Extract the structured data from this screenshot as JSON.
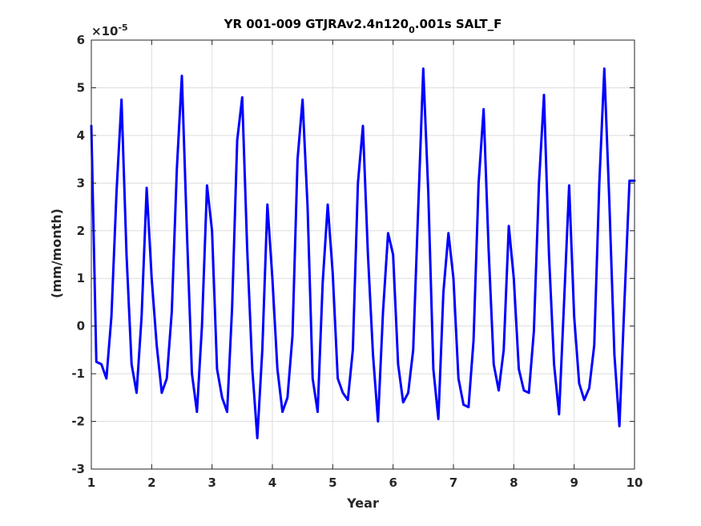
{
  "chart_data": {
    "type": "line",
    "title_main": "YR 001-009 GTJRAv2.4n120",
    "title_sub": "0",
    "title_tail": ".001s SALT_F",
    "xlabel": "Year",
    "ylabel": "(mm/month)",
    "multiplier_base": "×10",
    "multiplier_exp": "-5",
    "xlim": [
      1,
      10
    ],
    "ylim": [
      -3,
      6
    ],
    "xticks": [
      "1",
      "2",
      "3",
      "4",
      "5",
      "6",
      "7",
      "8",
      "9",
      "10"
    ],
    "yticks": [
      "-3",
      "-2",
      "-1",
      "0",
      "1",
      "2",
      "3",
      "4",
      "5",
      "6"
    ],
    "grid": true,
    "line_color": "#0000ff",
    "series": [
      {
        "x": [
          1.0,
          1.083,
          1.167,
          1.25,
          1.333,
          1.417,
          1.5,
          1.583,
          1.667,
          1.75,
          1.833,
          1.917,
          2.0,
          2.083,
          2.167,
          2.25,
          2.333,
          2.417,
          2.5,
          2.583,
          2.667,
          2.75,
          2.833,
          2.917,
          3.0,
          3.083,
          3.167,
          3.25,
          3.333,
          3.417,
          3.5,
          3.583,
          3.667,
          3.75,
          3.833,
          3.917,
          4.0,
          4.083,
          4.167,
          4.25,
          4.333,
          4.417,
          4.5,
          4.583,
          4.667,
          4.75,
          4.833,
          4.917,
          5.0,
          5.083,
          5.167,
          5.25,
          5.333,
          5.417,
          5.5,
          5.583,
          5.667,
          5.75,
          5.833,
          5.917,
          6.0,
          6.083,
          6.167,
          6.25,
          6.333,
          6.417,
          6.5,
          6.583,
          6.667,
          6.75,
          6.833,
          6.917,
          7.0,
          7.083,
          7.167,
          7.25,
          7.333,
          7.417,
          7.5,
          7.583,
          7.667,
          7.75,
          7.833,
          7.917,
          8.0,
          8.083,
          8.167,
          8.25,
          8.333,
          8.417,
          8.5,
          8.583,
          8.667,
          8.75,
          8.833,
          8.917,
          9.0,
          9.083,
          9.167,
          9.25,
          9.333,
          9.417,
          9.5,
          9.583,
          9.667,
          9.75,
          9.833,
          9.917,
          10.0
        ],
        "y": [
          4.2,
          -0.75,
          -0.8,
          -1.1,
          0.2,
          2.8,
          4.75,
          1.5,
          -0.8,
          -1.4,
          0.2,
          2.9,
          1.0,
          -0.4,
          -1.4,
          -1.1,
          0.3,
          3.3,
          5.25,
          2.0,
          -1.0,
          -1.8,
          0.0,
          2.95,
          2.0,
          -0.9,
          -1.5,
          -1.8,
          0.4,
          3.9,
          4.8,
          1.6,
          -0.9,
          -2.35,
          -0.5,
          2.55,
          1.0,
          -0.9,
          -1.8,
          -1.5,
          -0.2,
          3.5,
          4.75,
          2.5,
          -1.1,
          -1.8,
          0.9,
          2.55,
          1.1,
          -1.1,
          -1.4,
          -1.55,
          -0.5,
          3.0,
          4.2,
          1.5,
          -0.6,
          -2.0,
          0.3,
          1.95,
          1.5,
          -0.8,
          -1.6,
          -1.4,
          -0.5,
          2.5,
          5.4,
          2.8,
          -0.9,
          -1.95,
          0.7,
          1.95,
          1.0,
          -1.1,
          -1.65,
          -1.7,
          -0.3,
          3.0,
          4.55,
          1.6,
          -0.8,
          -1.35,
          -0.5,
          2.1,
          1.0,
          -0.9,
          -1.35,
          -1.4,
          -0.1,
          3.0,
          4.85,
          1.5,
          -0.8,
          -1.85,
          0.5,
          2.95,
          0.2,
          -1.2,
          -1.55,
          -1.3,
          -0.4,
          3.0,
          5.4,
          2.6,
          -0.6,
          -2.1,
          0.5,
          3.05,
          3.05
        ]
      }
    ]
  }
}
